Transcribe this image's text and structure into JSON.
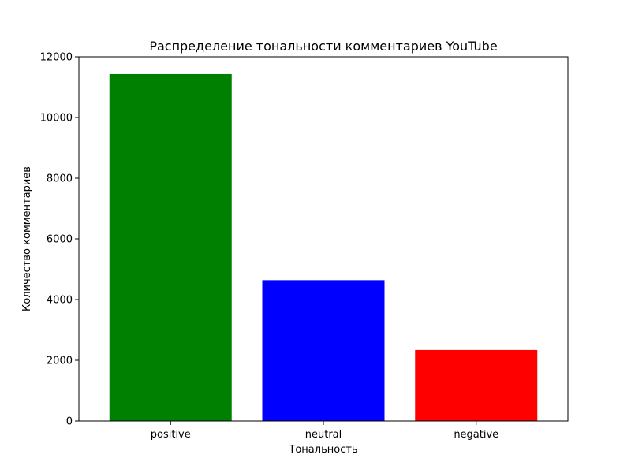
{
  "chart_data": {
    "type": "bar",
    "title": "Распределение тональности комментариев YouTube",
    "xlabel": "Тональность",
    "ylabel": "Количество комментариев",
    "categories": [
      "positive",
      "neutral",
      "negative"
    ],
    "values": [
      11430,
      4640,
      2340
    ],
    "colors": [
      "#008000",
      "#0000ff",
      "#ff0000"
    ],
    "ylim": [
      0,
      12000
    ],
    "yticks": [
      0,
      2000,
      4000,
      6000,
      8000,
      10000,
      12000
    ],
    "grid": false,
    "legend": "none"
  }
}
